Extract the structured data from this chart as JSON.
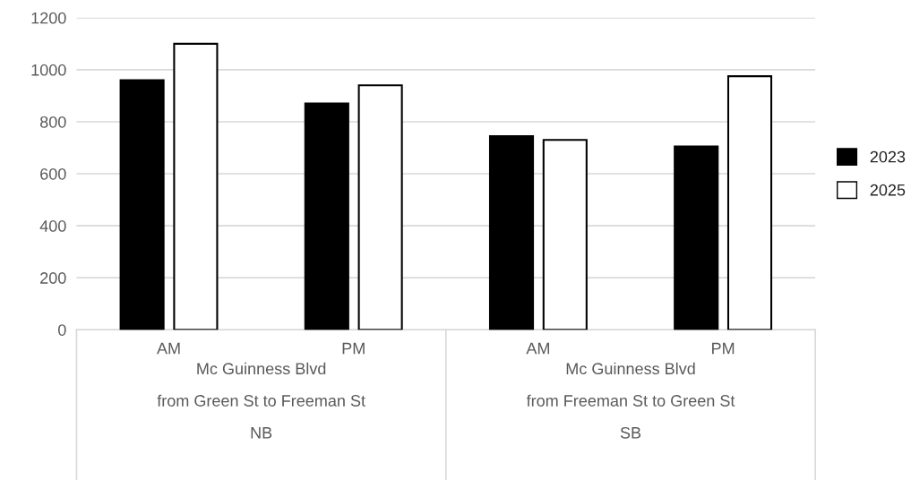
{
  "chart_data": {
    "type": "bar",
    "categories": [
      "AM",
      "PM",
      "AM",
      "PM"
    ],
    "series": [
      {
        "name": "2023",
        "color": "#000000",
        "values": [
          960,
          870,
          745,
          705
        ]
      },
      {
        "name": "2025",
        "color": "#ffffff",
        "values": [
          1100,
          940,
          730,
          975
        ]
      }
    ],
    "annotations": [
      "Mc Guinness Blvd\nfrom Green St to Freeman St\nNB",
      "Mc Guinness Blvd\nfrom Freeman St to Green St\nSB"
    ],
    "ylim": [
      0,
      1200
    ],
    "yticks": [
      0,
      200,
      400,
      600,
      800,
      1000,
      1200
    ],
    "grid": "y",
    "legend": "right"
  }
}
